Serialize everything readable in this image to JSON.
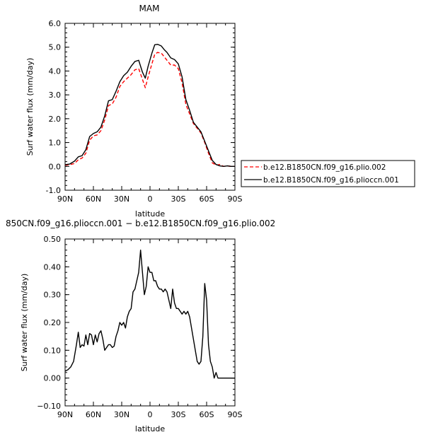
{
  "chart_data": [
    {
      "type": "line",
      "title": "MAM",
      "xlabel": "latitude",
      "ylabel": "Surf water flux (mm/day)",
      "xlim": [
        90,
        -90
      ],
      "ylim": [
        -1.0,
        6.0
      ],
      "x_ticks": [
        90,
        60,
        30,
        0,
        -30,
        -60,
        -90
      ],
      "x_tick_labels": [
        "90N",
        "60N",
        "30N",
        "0",
        "30S",
        "60S",
        "90S"
      ],
      "y_ticks": [
        -1,
        0,
        1,
        2,
        3,
        4,
        5,
        6
      ],
      "y_tick_labels": [
        "-1.0",
        "0.0",
        "1.0",
        "2.0",
        "3.0",
        "4.0",
        "5.0",
        "6.0"
      ],
      "legend_position": "right",
      "series": [
        {
          "name": "b.e12.B1850CN.f09_g16.plio.002",
          "color": "#ff0000",
          "dash": "dashed",
          "x": [
            90,
            85,
            80,
            76,
            72,
            68,
            64,
            60,
            56,
            52,
            48,
            44,
            40,
            36,
            32,
            28,
            24,
            20,
            16,
            12,
            8,
            5,
            2,
            -2,
            -5,
            -8,
            -12,
            -15,
            -18,
            -22,
            -26,
            -30,
            -34,
            -38,
            -42,
            -46,
            -50,
            -54,
            -58,
            -62,
            -66,
            -70,
            -74,
            -78,
            -82,
            -86,
            -90
          ],
          "y": [
            0.05,
            0.07,
            0.12,
            0.28,
            0.35,
            0.55,
            1.1,
            1.28,
            1.32,
            1.5,
            1.95,
            2.55,
            2.62,
            2.9,
            3.35,
            3.55,
            3.7,
            3.85,
            4.05,
            4.1,
            3.65,
            3.3,
            3.75,
            4.3,
            4.7,
            4.78,
            4.75,
            4.6,
            4.45,
            4.25,
            4.25,
            4.1,
            3.5,
            2.6,
            2.2,
            1.8,
            1.6,
            1.4,
            1.0,
            0.55,
            0.15,
            0.05,
            0.08,
            0.0,
            0.02,
            0.0,
            0.0
          ]
        },
        {
          "name": "b.e12.B1850CN.f09_g16.plioccn.001",
          "color": "#000000",
          "dash": "solid",
          "x": [
            90,
            85,
            80,
            76,
            72,
            68,
            64,
            60,
            56,
            52,
            48,
            44,
            40,
            36,
            32,
            28,
            24,
            20,
            16,
            12,
            8,
            5,
            2,
            -2,
            -5,
            -8,
            -12,
            -15,
            -18,
            -22,
            -26,
            -30,
            -34,
            -38,
            -42,
            -46,
            -50,
            -54,
            -58,
            -62,
            -66,
            -70,
            -74,
            -78,
            -82,
            -86,
            -90
          ],
          "y": [
            0.07,
            0.1,
            0.22,
            0.4,
            0.45,
            0.7,
            1.25,
            1.38,
            1.45,
            1.65,
            2.12,
            2.75,
            2.8,
            3.15,
            3.55,
            3.8,
            3.95,
            4.2,
            4.4,
            4.45,
            3.95,
            3.7,
            4.2,
            4.75,
            5.1,
            5.12,
            5.05,
            4.9,
            4.78,
            4.55,
            4.48,
            4.3,
            3.75,
            2.8,
            2.35,
            1.85,
            1.65,
            1.45,
            1.05,
            0.65,
            0.25,
            0.08,
            0.02,
            0.0,
            0.02,
            0.0,
            0.0
          ]
        }
      ]
    },
    {
      "type": "line",
      "title": "850CN.f09_g16.plioccn.001 − b.e12.B1850CN.f09_g16.plio.002",
      "xlabel": "latitude",
      "ylabel": "Surf water flux (mm/day)",
      "xlim": [
        90,
        -90
      ],
      "ylim": [
        -0.1,
        0.5
      ],
      "x_ticks": [
        90,
        60,
        30,
        0,
        -30,
        -60,
        -90
      ],
      "x_tick_labels": [
        "90N",
        "60N",
        "30N",
        "0",
        "30S",
        "60S",
        "90S"
      ],
      "y_ticks": [
        -0.1,
        0.0,
        0.1,
        0.2,
        0.3,
        0.4,
        0.5
      ],
      "y_tick_labels": [
        "−0.10",
        "0.00",
        "0.10",
        "0.20",
        "0.30",
        "0.40",
        "0.50"
      ],
      "series": [
        {
          "color": "#000000",
          "dash": "solid",
          "x": [
            90,
            87,
            84,
            81,
            78,
            76,
            74,
            72,
            70,
            68,
            66,
            64,
            62,
            60,
            58,
            56,
            54,
            52,
            50,
            48,
            46,
            44,
            42,
            40,
            38,
            36,
            34,
            32,
            30,
            28,
            26,
            24,
            22,
            20,
            18,
            16,
            14,
            12,
            10,
            8,
            6,
            4,
            2,
            0,
            -2,
            -4,
            -6,
            -8,
            -10,
            -12,
            -14,
            -16,
            -18,
            -20,
            -22,
            -24,
            -26,
            -28,
            -30,
            -32,
            -34,
            -36,
            -38,
            -40,
            -42,
            -44,
            -46,
            -48,
            -50,
            -52,
            -54,
            -56,
            -58,
            -60,
            -62,
            -64,
            -66,
            -68,
            -70,
            -72,
            -74,
            -76,
            -78,
            -80,
            -82,
            -84,
            -86,
            -88,
            -90
          ],
          "y": [
            0.025,
            0.03,
            0.04,
            0.06,
            0.12,
            0.165,
            0.11,
            0.12,
            0.115,
            0.155,
            0.12,
            0.16,
            0.155,
            0.12,
            0.155,
            0.13,
            0.16,
            0.17,
            0.14,
            0.1,
            0.11,
            0.12,
            0.12,
            0.11,
            0.115,
            0.15,
            0.17,
            0.2,
            0.19,
            0.2,
            0.18,
            0.22,
            0.24,
            0.25,
            0.31,
            0.32,
            0.35,
            0.38,
            0.46,
            0.38,
            0.3,
            0.33,
            0.4,
            0.38,
            0.38,
            0.35,
            0.35,
            0.33,
            0.32,
            0.32,
            0.31,
            0.32,
            0.31,
            0.28,
            0.25,
            0.32,
            0.27,
            0.25,
            0.25,
            0.24,
            0.23,
            0.24,
            0.23,
            0.24,
            0.22,
            0.18,
            0.14,
            0.1,
            0.06,
            0.05,
            0.06,
            0.15,
            0.34,
            0.28,
            0.12,
            0.06,
            0.04,
            0.0,
            0.02,
            0.0,
            0.0,
            0.0,
            0.0,
            0.0,
            0.0,
            0.0,
            0.0,
            0.0,
            0.0
          ]
        }
      ]
    }
  ]
}
